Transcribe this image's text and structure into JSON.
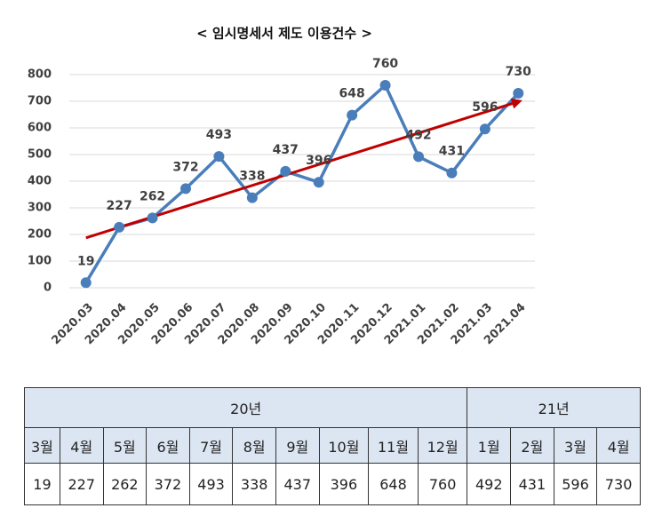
{
  "chart_data": {
    "type": "line",
    "title": "< 임시명세서 제도 이용건수 >",
    "categories": [
      "2020.03",
      "2020.04",
      "2020.05",
      "2020.06",
      "2020.07",
      "2020.08",
      "2020.09",
      "2020.10",
      "2020.11",
      "2020.12",
      "2021.01",
      "2021.02",
      "2021.03",
      "2021.04"
    ],
    "values": [
      19,
      227,
      262,
      372,
      493,
      338,
      437,
      396,
      648,
      760,
      492,
      431,
      596,
      730
    ],
    "color": "#4a7ebb",
    "ylim": [
      0,
      800
    ],
    "yticks": [
      0,
      100,
      200,
      300,
      400,
      500,
      600,
      700,
      800
    ],
    "grid": true,
    "trendline": {
      "color": "#c00000"
    }
  },
  "table": {
    "groups": [
      {
        "label": "20년",
        "months": [
          "3월",
          "4월",
          "5월",
          "6월",
          "7월",
          "8월",
          "9월",
          "10월",
          "11월",
          "12월"
        ]
      },
      {
        "label": "21년",
        "months": [
          "1월",
          "2월",
          "3월",
          "4월"
        ]
      }
    ]
  }
}
